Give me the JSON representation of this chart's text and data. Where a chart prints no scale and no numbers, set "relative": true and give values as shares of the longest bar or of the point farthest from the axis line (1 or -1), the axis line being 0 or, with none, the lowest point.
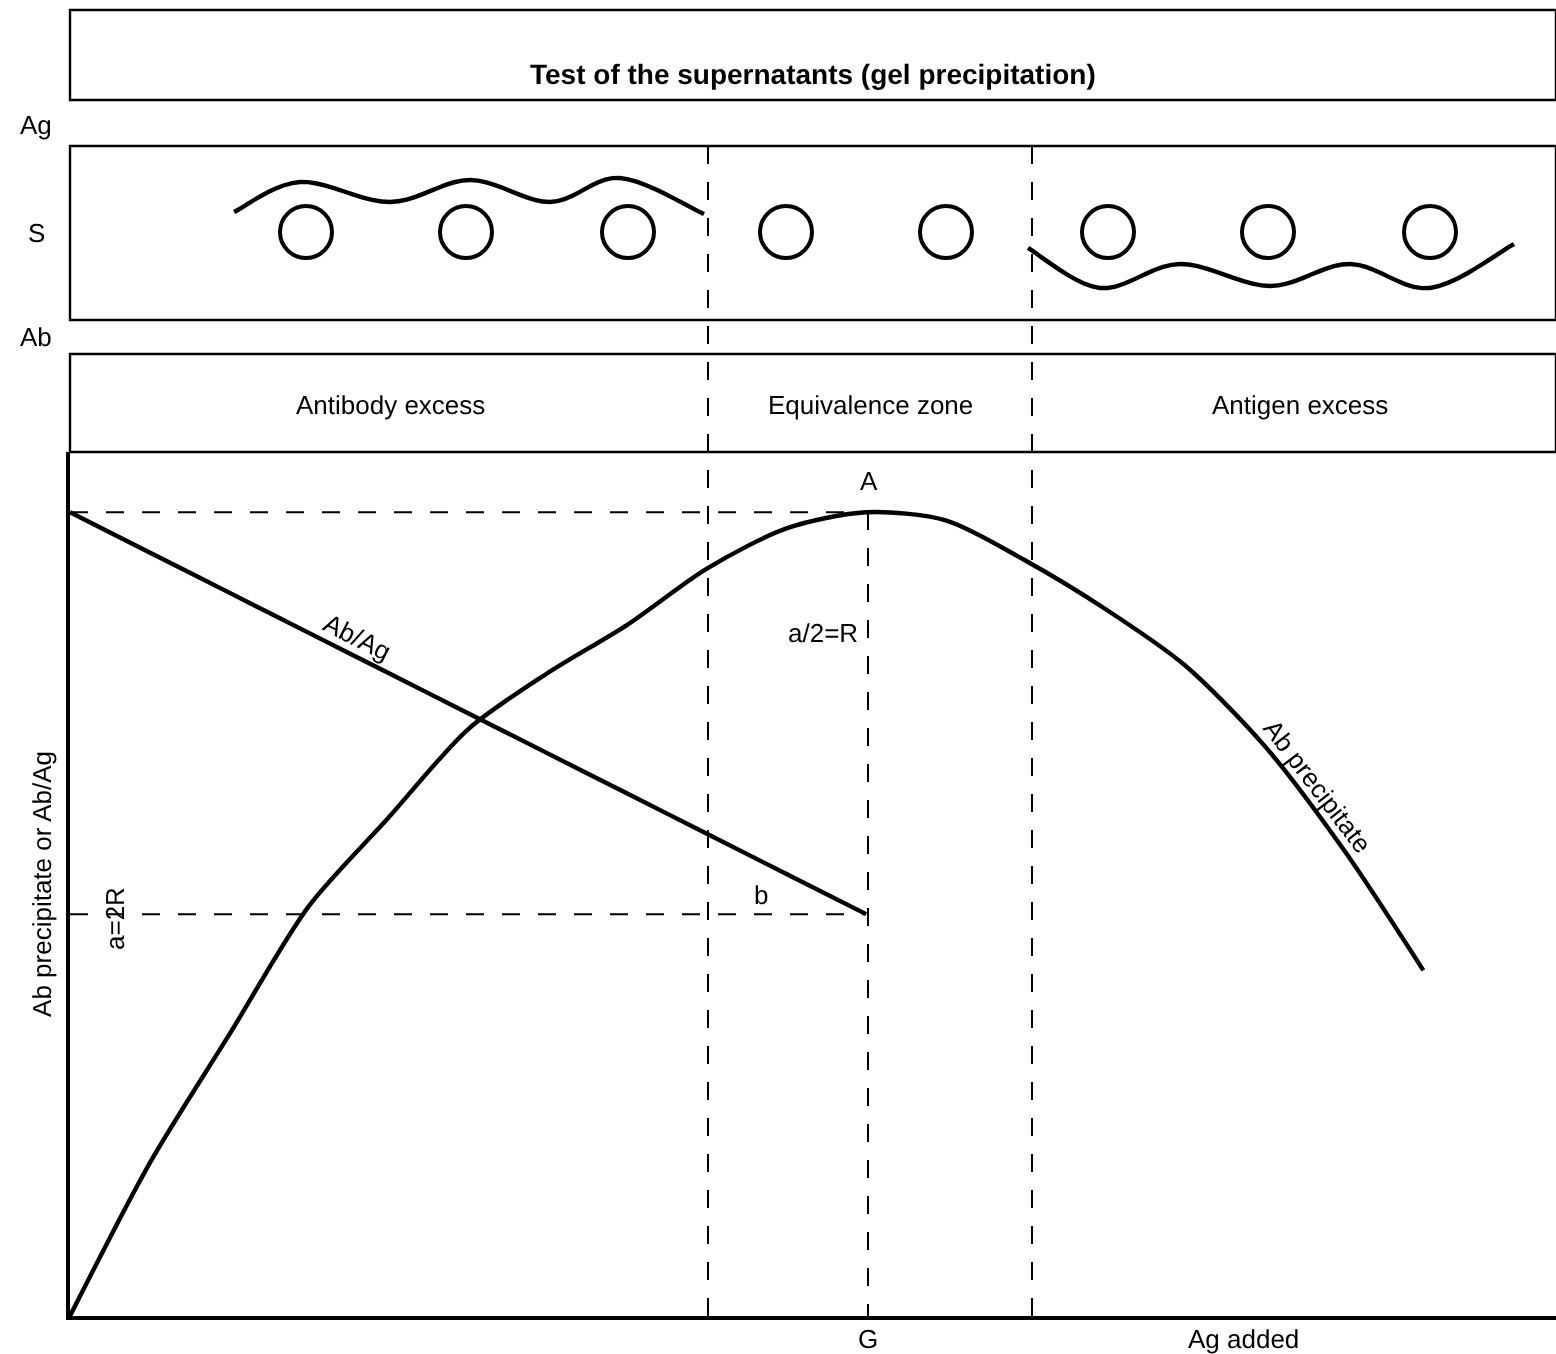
{
  "chart_data": {
    "type": "line",
    "relative": true,
    "title": "Test of the supernatants (gel precipitation)",
    "xlabel": "Ag added",
    "ylabel": "Ab precipitate or Ab/Ag",
    "categories": [
      null,
      null,
      null,
      null,
      null,
      null,
      null,
      null,
      null,
      null,
      null,
      null,
      null,
      null,
      null,
      null,
      null,
      null
    ],
    "series": [
      {
        "name": "Ab precipitate",
        "color": "#000000",
        "values": [
          0,
          0.19,
          0.35,
          0.51,
          0.62,
          0.73,
          0.8,
          0.86,
          0.93,
          0.98,
          1,
          0.99,
          0.94,
          0.88,
          0.81,
          0.71,
          0.58,
          0.43
        ]
      },
      {
        "name": "Ab/Ag",
        "color": "#000000",
        "values": [
          1,
          0.95,
          0.9,
          0.85,
          0.8,
          0.75,
          0.7,
          0.65,
          0.6,
          0.55,
          0.5,
          null,
          null,
          null,
          null,
          null,
          null,
          null
        ]
      },
      {
        "color": "#000000",
        "line_style": "dashed",
        "values": [
          1,
          1,
          1,
          1,
          1,
          1,
          1,
          1,
          1,
          1,
          1,
          null,
          null,
          null,
          null,
          null,
          null,
          null
        ]
      },
      {
        "color": "#000000",
        "line_style": "dashed",
        "values": [
          0.5,
          0.5,
          0.5,
          0.5,
          0.5,
          0.5,
          0.5,
          0.5,
          0.5,
          0.5,
          0.5,
          null,
          null,
          null,
          null,
          null,
          null,
          null
        ]
      }
    ],
    "annotations": [
      "A",
      "b",
      "a/2=R",
      "a=2R",
      "Ag",
      "S",
      "Ab",
      "Antibody excess",
      "Equivalence zone",
      "Antigen excess",
      "G"
    ],
    "legend": false,
    "grid": false,
    "marker": "none",
    "line_style": "solid"
  }
}
